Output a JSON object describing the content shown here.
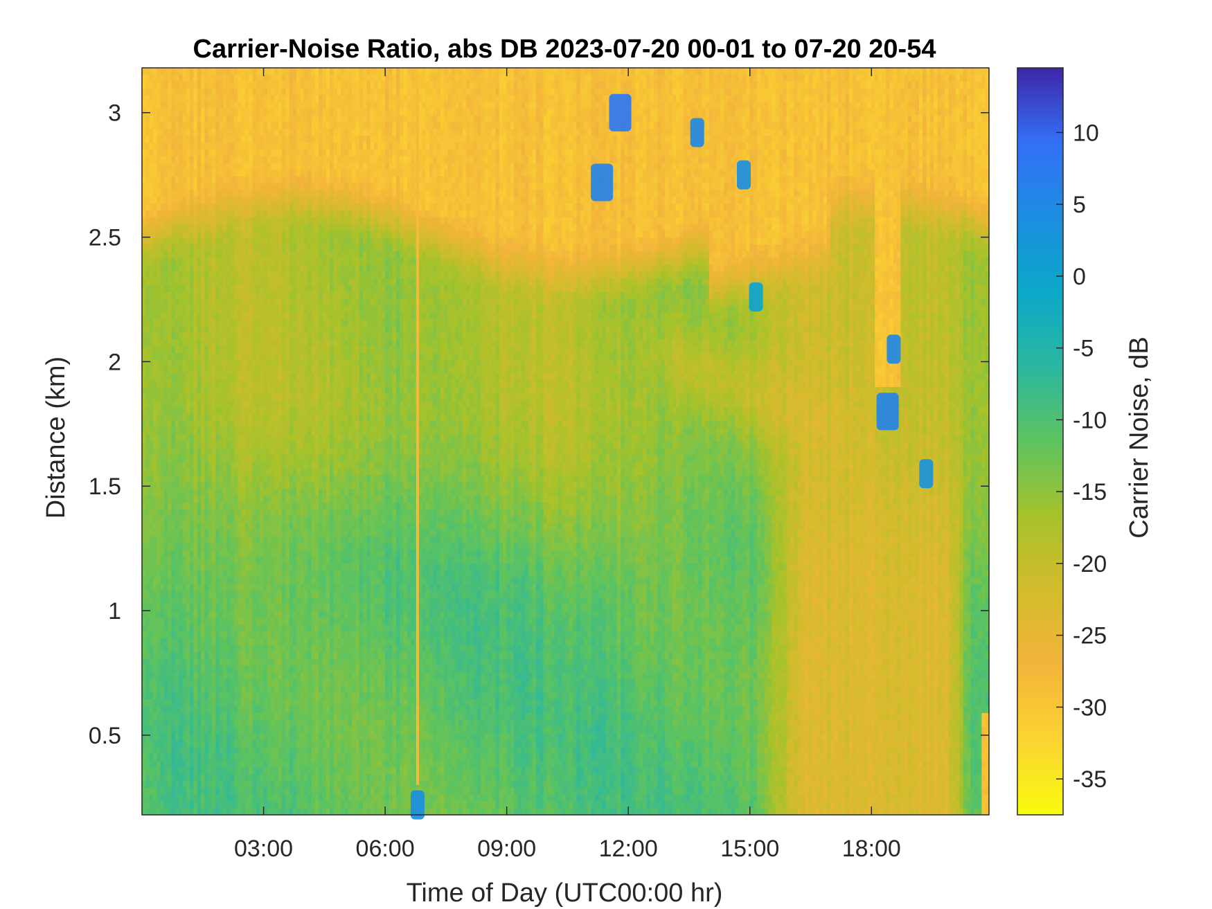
{
  "chart_data": {
    "type": "heatmap",
    "title": "Carrier-Noise Ratio, abs DB 2023-07-20 00-01 to 07-20 20-54",
    "xlabel": "Time of Day (UTC00:00 hr)",
    "ylabel": "Distance (km)",
    "colorbar_label": "Carrier Noise, dB",
    "x_range_hours": [
      0.0,
      20.9
    ],
    "x_ticks": [
      {
        "value": 3,
        "label": "03:00"
      },
      {
        "value": 6,
        "label": "06:00"
      },
      {
        "value": 9,
        "label": "09:00"
      },
      {
        "value": 12,
        "label": "12:00"
      },
      {
        "value": 15,
        "label": "15:00"
      },
      {
        "value": 18,
        "label": "18:00"
      }
    ],
    "y_range_km": [
      0.18,
      3.18
    ],
    "y_ticks": [
      {
        "value": 0.5,
        "label": "0.5"
      },
      {
        "value": 1,
        "label": "1"
      },
      {
        "value": 1.5,
        "label": "1.5"
      },
      {
        "value": 2,
        "label": "2"
      },
      {
        "value": 2.5,
        "label": "2.5"
      },
      {
        "value": 3,
        "label": "3"
      }
    ],
    "color_range_db": [
      -37.5,
      14.5
    ],
    "colorbar_ticks": [
      {
        "value": 10,
        "label": "10"
      },
      {
        "value": 5,
        "label": "5"
      },
      {
        "value": 0,
        "label": "0"
      },
      {
        "value": -5,
        "label": "-5"
      },
      {
        "value": -10,
        "label": "-10"
      },
      {
        "value": -15,
        "label": "-15"
      },
      {
        "value": -20,
        "label": "-20"
      },
      {
        "value": -25,
        "label": "-25"
      },
      {
        "value": -30,
        "label": "-30"
      },
      {
        "value": -35,
        "label": "-35"
      }
    ],
    "colormap": "parula",
    "grid": false,
    "field_description": {
      "upper_layer_top_km": 2.6,
      "upper_layer_value_db": -29,
      "middle_value_db": -17,
      "lower_value_db": -11,
      "late_day_lower_value_db": -23,
      "vertical_streak_hour": 6.8
    },
    "high_value_patches": [
      {
        "hour": 11.8,
        "km": 3.0,
        "db": 8
      },
      {
        "hour": 11.35,
        "km": 2.72,
        "db": 6
      },
      {
        "hour": 13.7,
        "km": 2.92,
        "db": 5
      },
      {
        "hour": 14.85,
        "km": 2.75,
        "db": 4
      },
      {
        "hour": 15.15,
        "km": 2.26,
        "db": 0
      },
      {
        "hour": 18.4,
        "km": 1.8,
        "db": 6
      },
      {
        "hour": 18.55,
        "km": 2.05,
        "db": 5
      },
      {
        "hour": 19.35,
        "km": 1.55,
        "db": 3
      },
      {
        "hour": 6.8,
        "km": 0.22,
        "db": 4
      }
    ]
  }
}
